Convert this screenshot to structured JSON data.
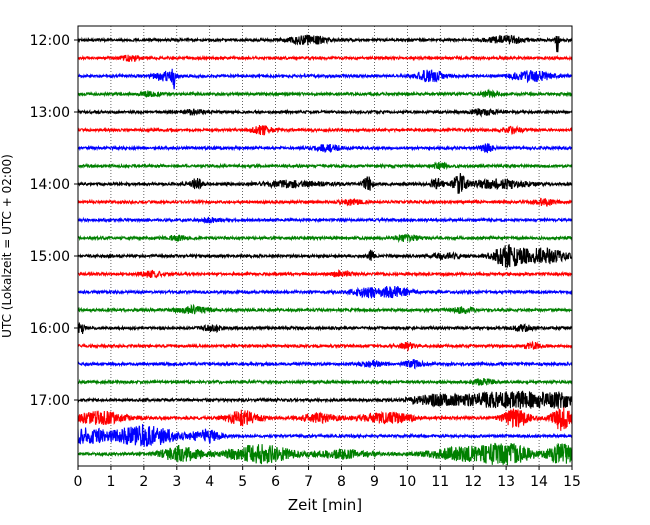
{
  "chart_data": {
    "type": "line",
    "title": "",
    "xlabel": "Zeit  [min]",
    "ylabel": "UTC (Lokalzeit = UTC + 02:00)",
    "xlim": [
      0,
      15
    ],
    "x_ticks": [
      "0",
      "1",
      "2",
      "3",
      "4",
      "5",
      "6",
      "7",
      "8",
      "9",
      "10",
      "11",
      "12",
      "13",
      "14",
      "15"
    ],
    "y_ticks": [
      "12:00",
      "13:00",
      "14:00",
      "15:00",
      "16:00",
      "17:00"
    ],
    "y_start": "12:00",
    "trace_interval_min": 15,
    "grid": "vertical dotted",
    "trace_colors": [
      "#000000",
      "#ff0000",
      "#0000ff",
      "#008000"
    ],
    "series": [
      {
        "time": "12:00",
        "color": "#000000",
        "events": [
          [
            14.55,
            3.0,
            0.05
          ],
          [
            7.0,
            0.8,
            0.6
          ],
          [
            13.0,
            0.7,
            0.6
          ]
        ]
      },
      {
        "time": "12:15",
        "color": "#ff0000",
        "events": [
          [
            1.6,
            0.5,
            0.3
          ]
        ]
      },
      {
        "time": "12:30",
        "color": "#0000ff",
        "events": [
          [
            2.9,
            2.8,
            0.05
          ],
          [
            2.6,
            1.0,
            0.3
          ],
          [
            10.7,
            1.2,
            0.4
          ],
          [
            13.8,
            1.0,
            0.6
          ]
        ]
      },
      {
        "time": "12:45",
        "color": "#008000",
        "events": [
          [
            2.2,
            0.5,
            0.3
          ],
          [
            12.5,
            0.5,
            0.3
          ]
        ]
      },
      {
        "time": "13:00",
        "color": "#000000",
        "events": [
          [
            3.5,
            0.5,
            0.3
          ],
          [
            12.3,
            0.6,
            0.4
          ]
        ]
      },
      {
        "time": "13:15",
        "color": "#ff0000",
        "events": [
          [
            5.6,
            0.8,
            0.3
          ],
          [
            13.2,
            0.6,
            0.3
          ]
        ]
      },
      {
        "time": "13:30",
        "color": "#0000ff",
        "events": [
          [
            7.6,
            0.7,
            0.4
          ],
          [
            12.4,
            0.8,
            0.2
          ]
        ]
      },
      {
        "time": "13:45",
        "color": "#008000",
        "events": [
          [
            11.0,
            0.6,
            0.2
          ]
        ]
      },
      {
        "time": "14:00",
        "color": "#000000",
        "events": [
          [
            3.6,
            1.0,
            0.2
          ],
          [
            8.8,
            1.5,
            0.15
          ],
          [
            10.9,
            1.0,
            0.2
          ],
          [
            11.6,
            2.0,
            0.2
          ],
          [
            12.8,
            0.9,
            0.8
          ],
          [
            6.5,
            0.6,
            1.0
          ]
        ]
      },
      {
        "time": "14:15",
        "color": "#ff0000",
        "events": [
          [
            14.2,
            0.7,
            0.3
          ],
          [
            8.3,
            0.5,
            0.3
          ]
        ]
      },
      {
        "time": "14:30",
        "color": "#0000ff",
        "events": [
          [
            4.0,
            0.4,
            0.3
          ]
        ]
      },
      {
        "time": "14:45",
        "color": "#008000",
        "events": [
          [
            10.0,
            0.6,
            0.4
          ],
          [
            3.0,
            0.5,
            0.3
          ]
        ]
      },
      {
        "time": "15:00",
        "color": "#000000",
        "events": [
          [
            13.1,
            2.2,
            0.5
          ],
          [
            14.2,
            1.5,
            0.6
          ],
          [
            8.9,
            1.0,
            0.1
          ],
          [
            11.2,
            0.6,
            0.4
          ]
        ]
      },
      {
        "time": "15:15",
        "color": "#ff0000",
        "events": [
          [
            2.2,
            0.6,
            0.3
          ],
          [
            8.0,
            0.5,
            0.3
          ]
        ]
      },
      {
        "time": "15:30",
        "color": "#0000ff",
        "events": [
          [
            8.9,
            1.0,
            0.6
          ],
          [
            9.7,
            0.8,
            0.4
          ]
        ]
      },
      {
        "time": "15:45",
        "color": "#008000",
        "events": [
          [
            3.5,
            0.7,
            0.5
          ],
          [
            11.7,
            0.6,
            0.3
          ]
        ]
      },
      {
        "time": "16:00",
        "color": "#000000",
        "events": [
          [
            0.1,
            1.2,
            0.1
          ],
          [
            4.1,
            0.6,
            0.3
          ],
          [
            13.5,
            0.6,
            0.3
          ]
        ]
      },
      {
        "time": "16:15",
        "color": "#ff0000",
        "events": [
          [
            10.0,
            0.7,
            0.2
          ],
          [
            13.8,
            0.6,
            0.3
          ]
        ]
      },
      {
        "time": "16:30",
        "color": "#0000ff",
        "events": [
          [
            10.2,
            0.7,
            0.3
          ],
          [
            9.0,
            0.5,
            0.4
          ]
        ]
      },
      {
        "time": "16:45",
        "color": "#008000",
        "events": [
          [
            12.3,
            0.6,
            0.3
          ]
        ]
      },
      {
        "time": "17:00",
        "color": "#000000",
        "events": [
          [
            10.9,
            1.0,
            0.8
          ],
          [
            12.5,
            1.3,
            0.9
          ],
          [
            14.6,
            1.5,
            0.8
          ],
          [
            13.5,
            1.0,
            0.6
          ]
        ]
      },
      {
        "time": "17:15",
        "color": "#ff0000",
        "events": [
          [
            0.7,
            1.2,
            0.8
          ],
          [
            5.0,
            1.4,
            0.5
          ],
          [
            9.4,
            1.0,
            0.8
          ],
          [
            13.3,
            1.8,
            0.4
          ],
          [
            14.7,
            2.4,
            0.3
          ],
          [
            7.3,
            0.8,
            0.6
          ]
        ]
      },
      {
        "time": "17:30",
        "color": "#0000ff",
        "events": [
          [
            0.3,
            1.6,
            0.5
          ],
          [
            2.0,
            2.0,
            1.0
          ],
          [
            3.9,
            1.2,
            0.4
          ]
        ]
      },
      {
        "time": "17:45",
        "color": "#008000",
        "events": [
          [
            3.1,
            1.5,
            0.6
          ],
          [
            5.5,
            1.8,
            1.0
          ],
          [
            8.1,
            0.8,
            0.8
          ],
          [
            11.6,
            1.2,
            1.0
          ],
          [
            13.0,
            2.0,
            0.8
          ],
          [
            14.7,
            2.2,
            0.4
          ]
        ]
      }
    ]
  }
}
